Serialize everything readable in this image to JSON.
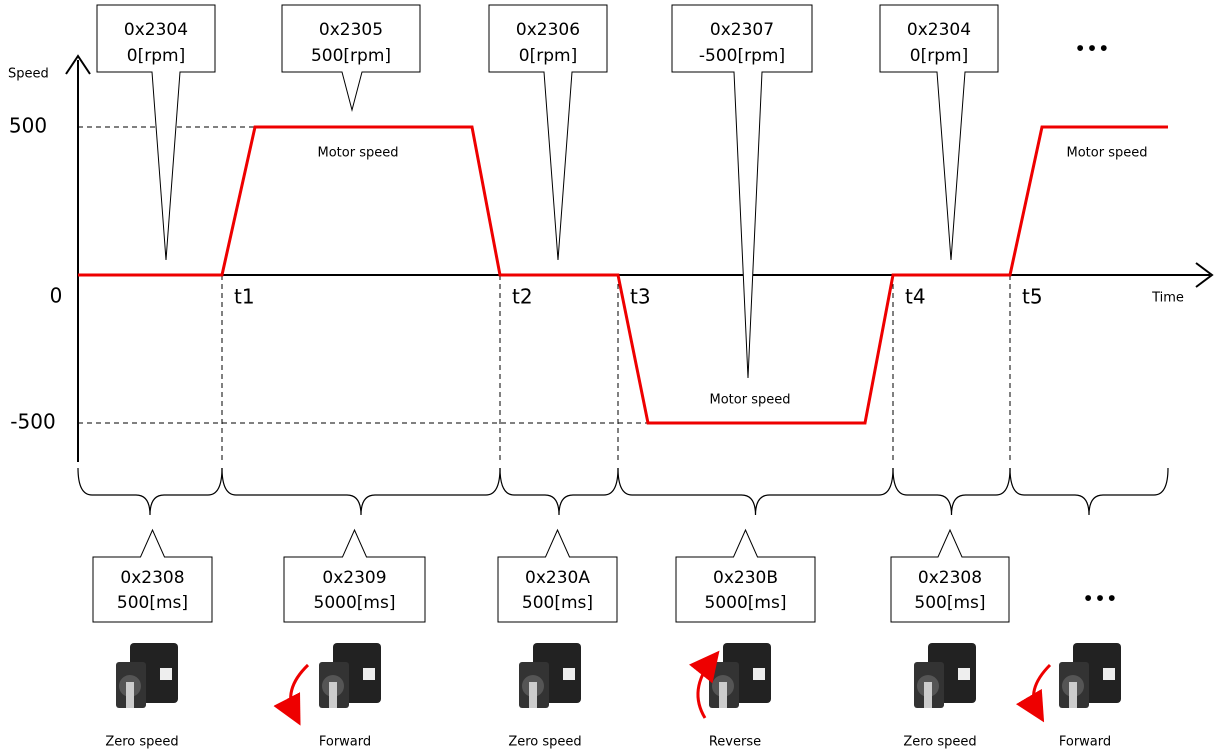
{
  "axis": {
    "y_label": "Speed",
    "x_label": "Time",
    "origin": "0",
    "levels": [
      "500",
      "-500"
    ],
    "times": [
      "t1",
      "t2",
      "t3",
      "t4",
      "t5"
    ]
  },
  "top_callouts": [
    {
      "code": "0x2304",
      "value": "0[rpm]"
    },
    {
      "code": "0x2305",
      "value": "500[rpm]"
    },
    {
      "code": "0x2306",
      "value": "0[rpm]"
    },
    {
      "code": "0x2307",
      "value": "-500[rpm]"
    },
    {
      "code": "0x2304",
      "value": "0[rpm]"
    }
  ],
  "speed_labels": [
    "Motor speed",
    "Motor speed",
    "Motor speed"
  ],
  "bottom_callouts": [
    {
      "code": "0x2308",
      "value": "500[ms]"
    },
    {
      "code": "0x2309",
      "value": "5000[ms]"
    },
    {
      "code": "0x230A",
      "value": "500[ms]"
    },
    {
      "code": "0x230B",
      "value": "5000[ms]"
    },
    {
      "code": "0x2308",
      "value": "500[ms]"
    }
  ],
  "motor_labels": [
    "Zero speed",
    "Forward",
    "Zero speed",
    "Reverse",
    "Zero speed",
    "Forward"
  ],
  "ellipsis": [
    "•••",
    "•••"
  ]
}
